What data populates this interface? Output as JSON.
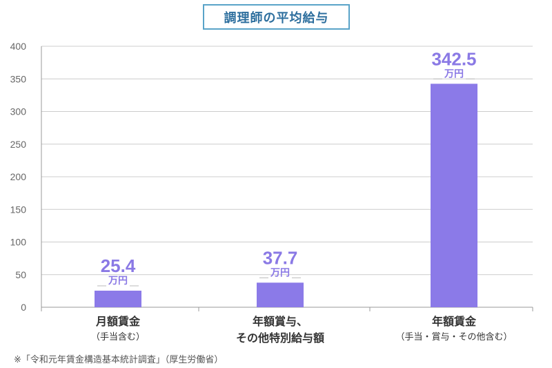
{
  "title": "調理師の平均給与",
  "footnote": "※「令和元年賃金構造基本統計調査」（厚生労働省）",
  "colors": {
    "bar": "#8b7ae8",
    "value_label": "#8a79e5",
    "title": "#2e6f9e",
    "title_border": "#59a3c8"
  },
  "chart_data": {
    "type": "bar",
    "categories": [
      {
        "line1": "月額賃金",
        "line2": "（手当含む）"
      },
      {
        "line1": "年額賞与、",
        "line2": "その他特別給与額"
      },
      {
        "line1": "年額賃金",
        "line2": "（手当・賞与・その他含む）"
      }
    ],
    "values": [
      25.4,
      37.7,
      342.5
    ],
    "value_labels": [
      "25.4",
      "37.7",
      "342.5"
    ],
    "unit": "万円",
    "yticks": [
      "0",
      "50",
      "100",
      "150",
      "200",
      "250",
      "300",
      "350",
      "400"
    ],
    "ylim": [
      0,
      400
    ],
    "grid": true
  }
}
